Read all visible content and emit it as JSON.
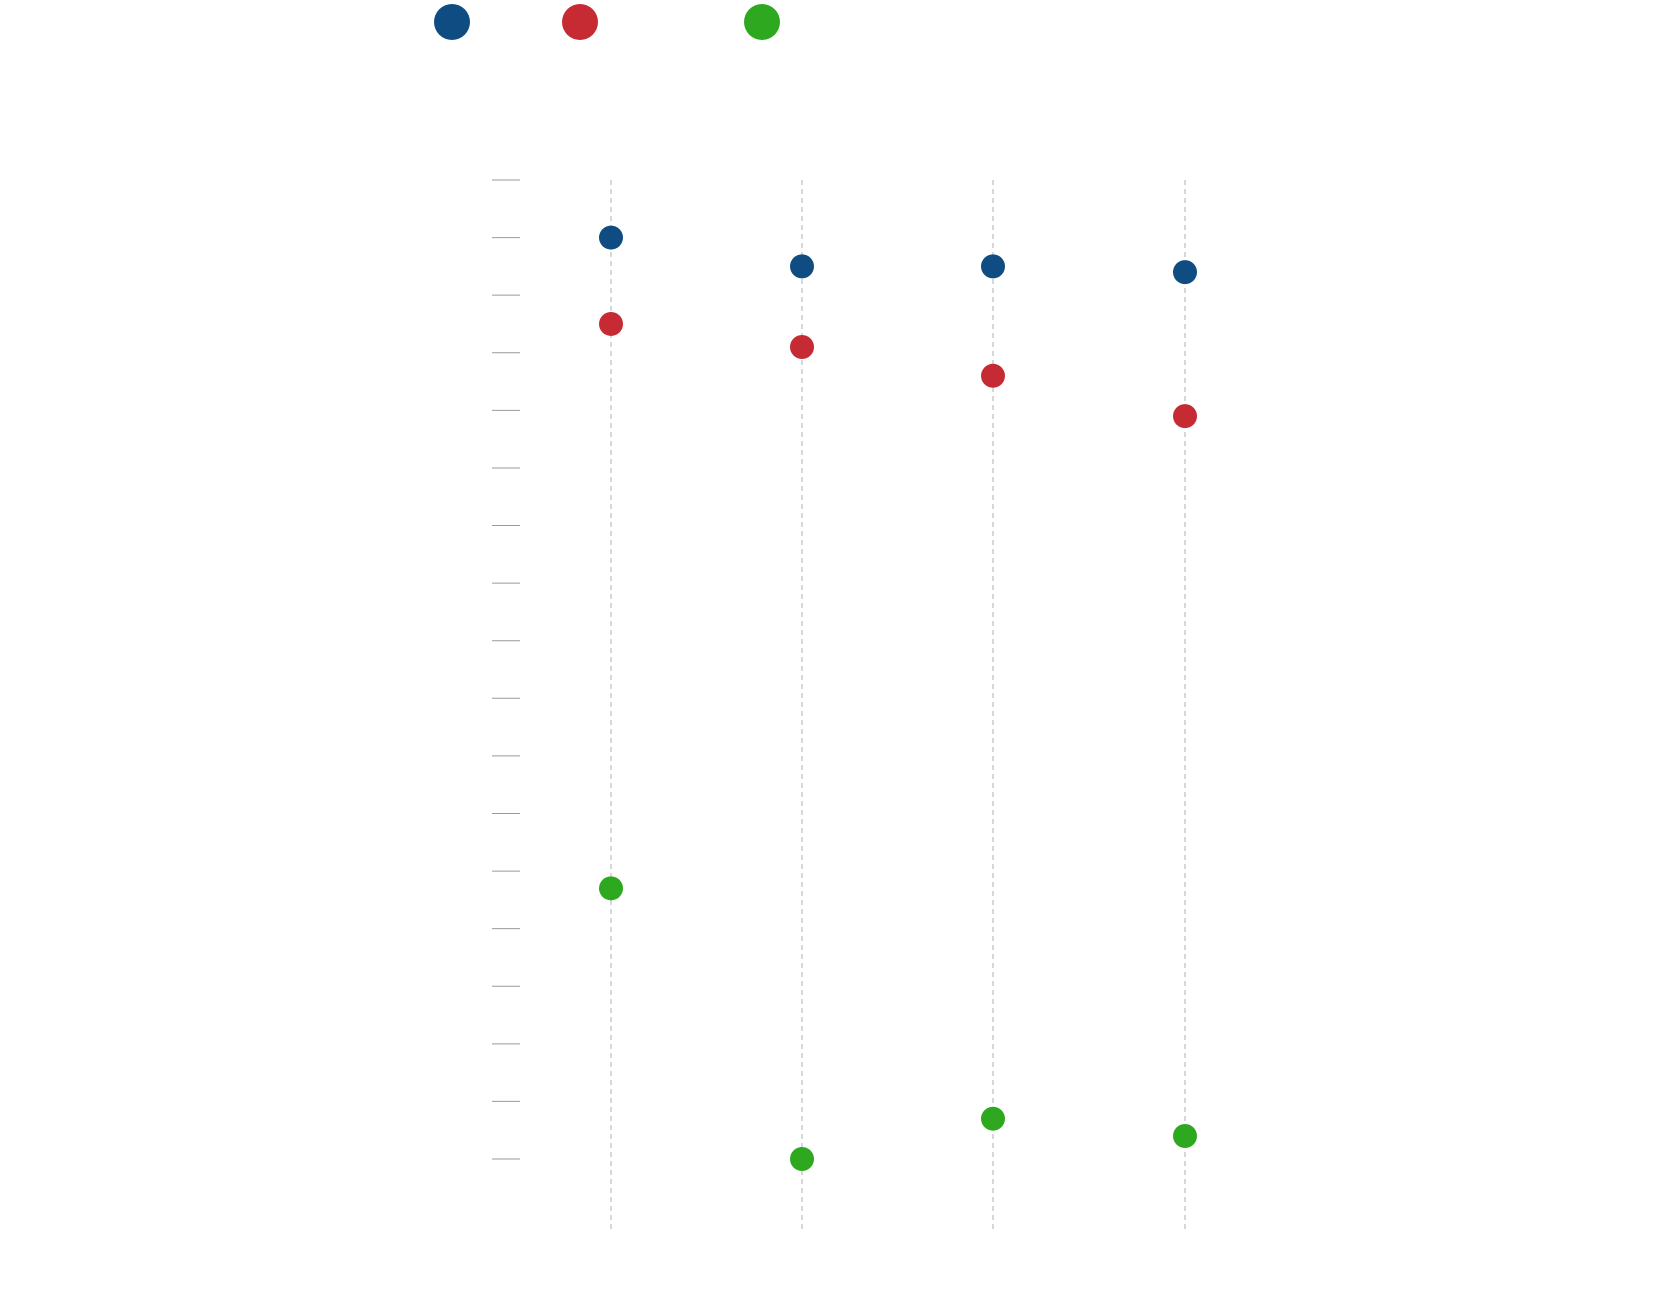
{
  "chart_data": {
    "type": "dot",
    "categories": [
      null,
      null,
      null,
      null
    ],
    "series": [
      {
        "color": "#0f4c81",
        "values": [
          16.0,
          15.5,
          15.5,
          15.4
        ]
      },
      {
        "color": "#c62a33",
        "values": [
          14.5,
          14.1,
          13.6,
          12.9
        ]
      },
      {
        "color": "#2ea81f",
        "values": [
          4.7,
          0.0,
          0.7,
          0.4
        ]
      }
    ],
    "ylim": [
      -1.25,
      17
    ],
    "yticks": [
      0,
      1,
      2,
      3,
      4,
      5,
      6,
      7,
      8,
      9,
      10,
      11,
      12,
      13,
      14,
      15,
      16,
      17
    ],
    "legend": "top-left"
  }
}
